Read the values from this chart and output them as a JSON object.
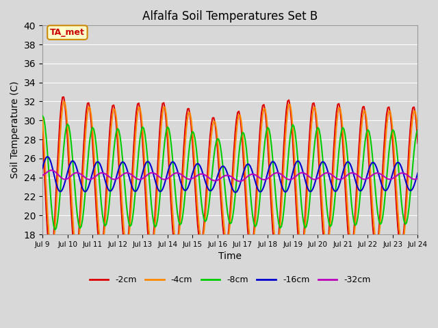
{
  "title": "Alfalfa Soil Temperatures Set B",
  "xlabel": "Time",
  "ylabel": "Soil Temperature (C)",
  "ylim": [
    18,
    40
  ],
  "yticks": [
    18,
    20,
    22,
    24,
    26,
    28,
    30,
    32,
    34,
    36,
    38,
    40
  ],
  "background_color": "#d8d8d8",
  "plot_bg_color": "#d8d8d8",
  "annotation_text": "TA_met",
  "annotation_bg": "#ffffcc",
  "annotation_border": "#cc8800",
  "legend_labels": [
    "-2cm",
    "-4cm",
    "-8cm",
    "-16cm",
    "-32cm"
  ],
  "line_colors": [
    "#dd0000",
    "#ff8800",
    "#00cc00",
    "#0000cc",
    "#bb00bb"
  ],
  "line_widths": [
    1.5,
    1.5,
    1.5,
    1.5,
    1.5
  ],
  "xtick_labels": [
    "Jul 9",
    "Jul 10",
    "Jul 11",
    "Jul 12",
    "Jul 13",
    "Jul 14",
    "Jul 15",
    "Jul 16",
    "Jul 17",
    "Jul 18",
    "Jul 19",
    "Jul 20",
    "Jul 21",
    "Jul 22",
    "Jul 23",
    "Jul 24"
  ],
  "n_days": 15,
  "dt": 0.05,
  "mean_temp": 24.5,
  "amplitudes": [
    9.0,
    8.5,
    6.0,
    1.8,
    0.4
  ],
  "phase_shifts": [
    0.0,
    0.04,
    0.18,
    0.38,
    0.55
  ],
  "grid_color": "#ffffff",
  "grid_linewidth": 0.8,
  "figsize": [
    6.4,
    4.8
  ],
  "dpi": 100
}
